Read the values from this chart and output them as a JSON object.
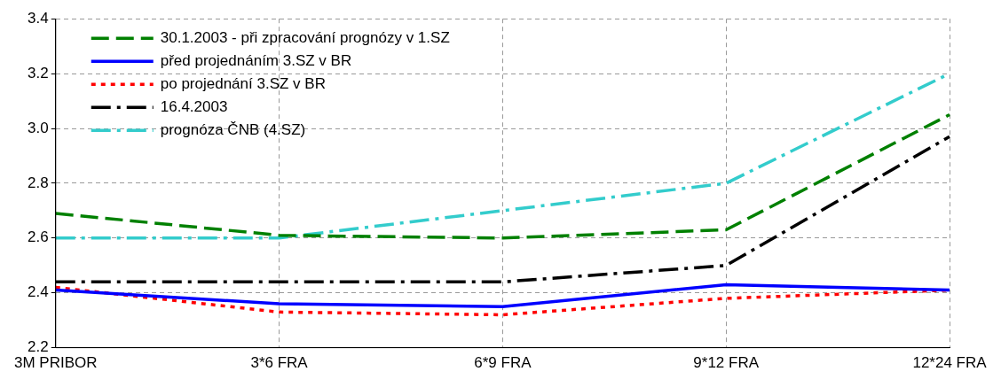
{
  "chart_data": {
    "type": "line",
    "categories": [
      "3M PRIBOR",
      "3*6 FRA",
      "6*9 FRA",
      "9*12 FRA",
      "12*24 FRA"
    ],
    "series": [
      {
        "name": "30.1.2003 - při zpracování prognózy v 1.SZ",
        "color": "#008000",
        "line_style": "dashed",
        "values": [
          2.69,
          2.61,
          2.6,
          2.63,
          3.05
        ]
      },
      {
        "name": "před projednáním 3.SZ v BR",
        "color": "#0000ff",
        "line_style": "solid",
        "values": [
          2.41,
          2.36,
          2.35,
          2.43,
          2.41
        ]
      },
      {
        "name": "po projednání 3.SZ v BR",
        "color": "#ff0000",
        "line_style": "dotted",
        "values": [
          2.42,
          2.33,
          2.32,
          2.38,
          2.41
        ]
      },
      {
        "name": "16.4.2003",
        "color": "#000000",
        "line_style": "dashed",
        "values": [
          2.44,
          2.44,
          2.44,
          2.5,
          2.97
        ]
      },
      {
        "name": "prognóza ČNB (4.SZ)",
        "color": "#33cccc",
        "line_style": "dashed",
        "values": [
          2.6,
          2.6,
          2.7,
          2.8,
          3.2
        ]
      }
    ],
    "ylim": [
      2.2,
      3.4
    ],
    "yticks": [
      2.2,
      2.4,
      2.6,
      2.8,
      {
        "value": 3,
        "label": "3.0"
      },
      3.2,
      3.4
    ],
    "grid": true,
    "legend": "top left",
    "marker": "none"
  }
}
